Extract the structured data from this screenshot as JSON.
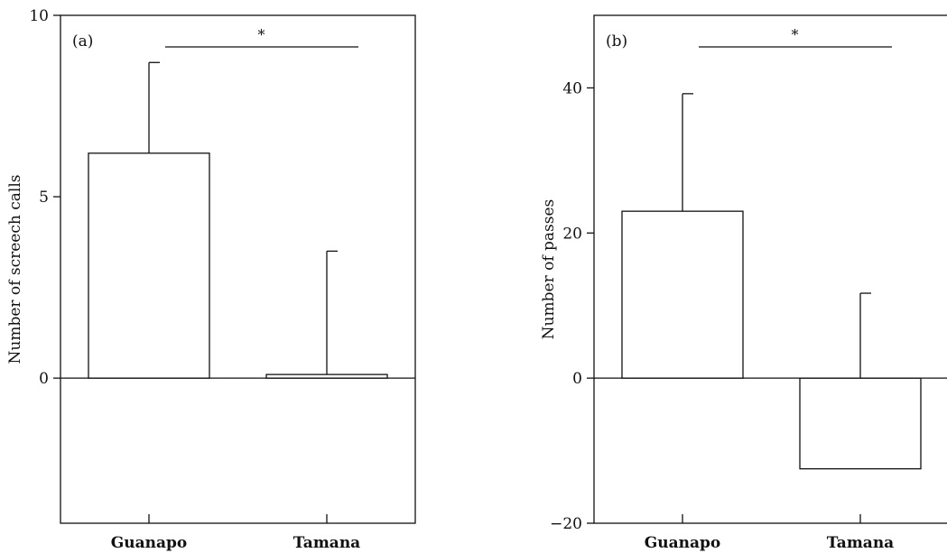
{
  "chart_data": [
    {
      "type": "bar",
      "panel_label": "(a)",
      "ylabel": "Number of screech calls",
      "categories": [
        "Guanapo",
        "Tamana"
      ],
      "values": [
        6.2,
        0.1
      ],
      "error_upper": [
        8.7,
        3.5
      ],
      "ylim": [
        -4,
        10
      ],
      "yticks": [
        0,
        5,
        10
      ],
      "ytick_labels": [
        "0",
        "5",
        "10"
      ],
      "significance": {
        "between": [
          "Guanapo",
          "Tamana"
        ],
        "label": "*"
      },
      "grid": false
    },
    {
      "type": "bar",
      "panel_label": "(b)",
      "ylabel": "Number of passes",
      "categories": [
        "Guanapo",
        "Tamana"
      ],
      "values": [
        23,
        -12.5
      ],
      "error_upper": [
        39.2,
        11.7
      ],
      "ylim": [
        -20,
        50
      ],
      "yticks": [
        -20,
        0,
        20,
        40
      ],
      "ytick_labels": [
        "−20",
        "0",
        "20",
        "40"
      ],
      "significance": {
        "between": [
          "Guanapo",
          "Tamana"
        ],
        "label": "*"
      },
      "grid": false
    }
  ]
}
